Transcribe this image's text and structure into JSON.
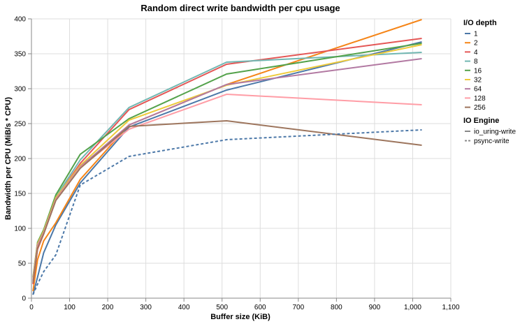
{
  "chart_data": {
    "type": "line",
    "title": "Random direct write bandwidth per cpu usage",
    "xlabel": "Buffer size (KiB)",
    "ylabel": "Bandwidth per CPU (MiB/s * CPU)",
    "xlim": [
      0,
      1100
    ],
    "ylim": [
      0,
      400
    ],
    "x_ticks": [
      "0",
      "100",
      "200",
      "300",
      "400",
      "500",
      "600",
      "700",
      "800",
      "900",
      "1,000",
      "1,100"
    ],
    "y_ticks": [
      "0",
      "50",
      "100",
      "150",
      "200",
      "250",
      "300",
      "350",
      "400"
    ],
    "grid": true,
    "legend_position": "right",
    "legend_color_title": "I/O depth",
    "legend_dash_title": "IO Engine",
    "engines": [
      {
        "name": "io_uring-write",
        "dash": "solid"
      },
      {
        "name": "psync-write",
        "dash": "dashed"
      }
    ],
    "series": [
      {
        "name": "1",
        "color": "#4c78a8",
        "engine": "io_uring-write",
        "points": [
          [
            4,
            5
          ],
          [
            16,
            30
          ],
          [
            32,
            65
          ],
          [
            64,
            105
          ],
          [
            128,
            165
          ],
          [
            256,
            245
          ],
          [
            512,
            298
          ],
          [
            1024,
            367
          ]
        ]
      },
      {
        "name": "2",
        "color": "#f58518",
        "engine": "io_uring-write",
        "points": [
          [
            4,
            10
          ],
          [
            16,
            55
          ],
          [
            32,
            82
          ],
          [
            64,
            108
          ],
          [
            128,
            170
          ],
          [
            256,
            248
          ],
          [
            512,
            306
          ],
          [
            1024,
            399
          ]
        ]
      },
      {
        "name": "4",
        "color": "#e45756",
        "engine": "io_uring-write",
        "points": [
          [
            4,
            20
          ],
          [
            16,
            70
          ],
          [
            32,
            92
          ],
          [
            64,
            143
          ],
          [
            128,
            193
          ],
          [
            256,
            270
          ],
          [
            512,
            335
          ],
          [
            1024,
            372
          ]
        ]
      },
      {
        "name": "8",
        "color": "#72b7b2",
        "engine": "io_uring-write",
        "points": [
          [
            4,
            25
          ],
          [
            16,
            75
          ],
          [
            32,
            95
          ],
          [
            64,
            145
          ],
          [
            128,
            198
          ],
          [
            256,
            273
          ],
          [
            512,
            338
          ],
          [
            1024,
            352
          ]
        ]
      },
      {
        "name": "16",
        "color": "#54a24b",
        "engine": "io_uring-write",
        "points": [
          [
            4,
            30
          ],
          [
            16,
            80
          ],
          [
            32,
            98
          ],
          [
            64,
            148
          ],
          [
            128,
            206
          ],
          [
            256,
            257
          ],
          [
            512,
            321
          ],
          [
            1024,
            365
          ]
        ]
      },
      {
        "name": "32",
        "color": "#eeca3b",
        "engine": "io_uring-write",
        "points": [
          [
            4,
            28
          ],
          [
            16,
            78
          ],
          [
            32,
            96
          ],
          [
            64,
            144
          ],
          [
            128,
            190
          ],
          [
            256,
            255
          ],
          [
            512,
            305
          ],
          [
            1024,
            363
          ]
        ]
      },
      {
        "name": "64",
        "color": "#b279a2",
        "engine": "io_uring-write",
        "points": [
          [
            4,
            26
          ],
          [
            16,
            76
          ],
          [
            32,
            94
          ],
          [
            64,
            142
          ],
          [
            128,
            188
          ],
          [
            256,
            248
          ],
          [
            512,
            306
          ],
          [
            1024,
            343
          ]
        ]
      },
      {
        "name": "128",
        "color": "#ff9da6",
        "engine": "io_uring-write",
        "points": [
          [
            4,
            24
          ],
          [
            16,
            74
          ],
          [
            32,
            93
          ],
          [
            64,
            141
          ],
          [
            128,
            187
          ],
          [
            256,
            242
          ],
          [
            512,
            292
          ],
          [
            1024,
            277
          ]
        ]
      },
      {
        "name": "256",
        "color": "#9d755d",
        "engine": "io_uring-write",
        "points": [
          [
            4,
            22
          ],
          [
            16,
            72
          ],
          [
            32,
            92
          ],
          [
            64,
            140
          ],
          [
            128,
            186
          ],
          [
            256,
            246
          ],
          [
            512,
            254
          ],
          [
            1024,
            219
          ]
        ]
      },
      {
        "name": "1",
        "color": "#4c78a8",
        "engine": "psync-write",
        "points": [
          [
            4,
            5
          ],
          [
            16,
            20
          ],
          [
            32,
            38
          ],
          [
            64,
            62
          ],
          [
            128,
            162
          ],
          [
            256,
            203
          ],
          [
            512,
            227
          ],
          [
            1024,
            241
          ]
        ]
      }
    ]
  }
}
